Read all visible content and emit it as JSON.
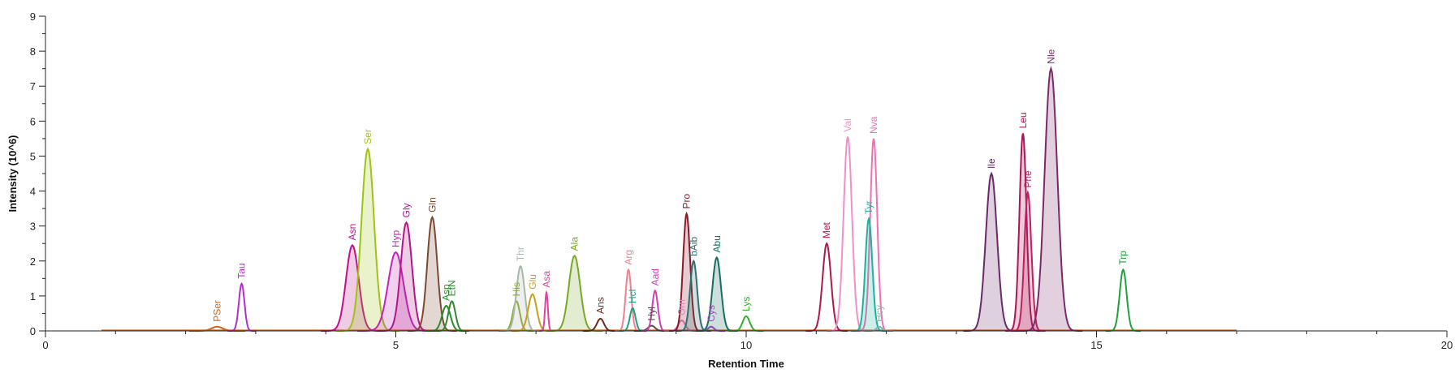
{
  "chart_data": {
    "type": "line",
    "title": "",
    "xlabel": "Retention Time",
    "ylabel": "Intensity (10^6)",
    "xlim": [
      0,
      20
    ],
    "ylim": [
      0,
      9
    ],
    "x_ticks": [
      "0",
      "5",
      "10",
      "15",
      "20"
    ],
    "y_ticks": [
      "0",
      "1",
      "2",
      "3",
      "4",
      "5",
      "6",
      "7",
      "8",
      "9"
    ],
    "grid": false,
    "legend": "none",
    "series": [
      {
        "name": "PSer",
        "x": 2.45,
        "y": 0.12,
        "width": 0.08,
        "color": "#c8641e",
        "filled": false
      },
      {
        "name": "Tau",
        "x": 2.8,
        "y": 1.35,
        "width": 0.04,
        "color": "#b030c8",
        "filled": false
      },
      {
        "name": "Asn",
        "x": 4.38,
        "y": 2.45,
        "width": 0.09,
        "color": "#c0108a",
        "filled": true
      },
      {
        "name": "Ser",
        "x": 4.6,
        "y": 5.2,
        "width": 0.09,
        "color": "#9dc414",
        "filled": true
      },
      {
        "name": "Hyp",
        "x": 5.0,
        "y": 2.25,
        "width": 0.11,
        "color": "#c028b4",
        "filled": true
      },
      {
        "name": "Gly",
        "x": 5.15,
        "y": 3.1,
        "width": 0.08,
        "color": "#b01888",
        "filled": true
      },
      {
        "name": "Gln",
        "x": 5.52,
        "y": 3.25,
        "width": 0.07,
        "color": "#7a4a32",
        "filled": true
      },
      {
        "name": "Asp",
        "x": 5.72,
        "y": 0.72,
        "width": 0.06,
        "color": "#2e8a2e",
        "filled": false
      },
      {
        "name": "EtN",
        "x": 5.8,
        "y": 0.85,
        "width": 0.05,
        "color": "#2e8a2e",
        "filled": false
      },
      {
        "name": "His",
        "x": 6.72,
        "y": 0.85,
        "width": 0.05,
        "color": "#8aa830",
        "filled": false
      },
      {
        "name": "Thr",
        "x": 6.78,
        "y": 1.85,
        "width": 0.06,
        "color": "#a8b8a8",
        "filled": true
      },
      {
        "name": "Glu",
        "x": 6.95,
        "y": 1.05,
        "width": 0.06,
        "color": "#c8a018",
        "filled": false
      },
      {
        "name": "Asa",
        "x": 7.15,
        "y": 1.1,
        "width": 0.02,
        "color": "#e040a0",
        "filled": false
      },
      {
        "name": "Ala",
        "x": 7.55,
        "y": 2.15,
        "width": 0.08,
        "color": "#78a828",
        "filled": true
      },
      {
        "name": "Ans",
        "x": 7.92,
        "y": 0.35,
        "width": 0.05,
        "color": "#6e2a1a",
        "filled": false
      },
      {
        "name": "Arg",
        "x": 8.32,
        "y": 1.75,
        "width": 0.04,
        "color": "#f08090",
        "filled": false
      },
      {
        "name": "Hcl",
        "x": 8.38,
        "y": 0.65,
        "width": 0.04,
        "color": "#20a080",
        "filled": false
      },
      {
        "name": "Hyl",
        "x": 8.65,
        "y": 0.15,
        "width": 0.05,
        "color": "#505050",
        "filled": false
      },
      {
        "name": "Aad",
        "x": 8.7,
        "y": 1.15,
        "width": 0.04,
        "color": "#d040b0",
        "filled": false
      },
      {
        "name": "Orn",
        "x": 9.08,
        "y": 0.3,
        "width": 0.05,
        "color": "#e080c0",
        "filled": false
      },
      {
        "name": "Pro",
        "x": 9.15,
        "y": 3.35,
        "width": 0.05,
        "color": "#8a1a2a",
        "filled": true
      },
      {
        "name": "bAib",
        "x": 9.25,
        "y": 2.0,
        "width": 0.05,
        "color": "#307070",
        "filled": true
      },
      {
        "name": "Cys",
        "x": 9.5,
        "y": 0.12,
        "width": 0.04,
        "color": "#b040d0",
        "filled": false
      },
      {
        "name": "Abu",
        "x": 9.58,
        "y": 2.1,
        "width": 0.06,
        "color": "#1a6e60",
        "filled": true
      },
      {
        "name": "Lys",
        "x": 10.0,
        "y": 0.42,
        "width": 0.05,
        "color": "#30b030",
        "filled": false
      },
      {
        "name": "Met",
        "x": 11.15,
        "y": 2.5,
        "width": 0.06,
        "color": "#b01848",
        "filled": false
      },
      {
        "name": "Val",
        "x": 11.45,
        "y": 5.55,
        "width": 0.06,
        "color": "#f090c8",
        "filled": false
      },
      {
        "name": "Nva",
        "x": 11.82,
        "y": 5.5,
        "width": 0.05,
        "color": "#f070b0",
        "filled": false
      },
      {
        "name": "Tyr",
        "x": 11.75,
        "y": 3.2,
        "width": 0.05,
        "color": "#20b0a0",
        "filled": true
      },
      {
        "name": "Hcy",
        "x": 11.9,
        "y": 0.12,
        "width": 0.04,
        "color": "#8ab0b0",
        "filled": false
      },
      {
        "name": "Ile",
        "x": 13.5,
        "y": 4.5,
        "width": 0.08,
        "color": "#6a2a6a",
        "filled": true
      },
      {
        "name": "Leu",
        "x": 13.95,
        "y": 5.65,
        "width": 0.05,
        "color": "#a81858",
        "filled": true
      },
      {
        "name": "Phe",
        "x": 14.02,
        "y": 3.95,
        "width": 0.05,
        "color": "#c02060",
        "filled": true
      },
      {
        "name": "Nle",
        "x": 14.35,
        "y": 7.5,
        "width": 0.09,
        "color": "#7a2a6a",
        "filled": true
      },
      {
        "name": "Trp",
        "x": 15.38,
        "y": 1.75,
        "width": 0.05,
        "color": "#20a040",
        "filled": false
      }
    ]
  }
}
